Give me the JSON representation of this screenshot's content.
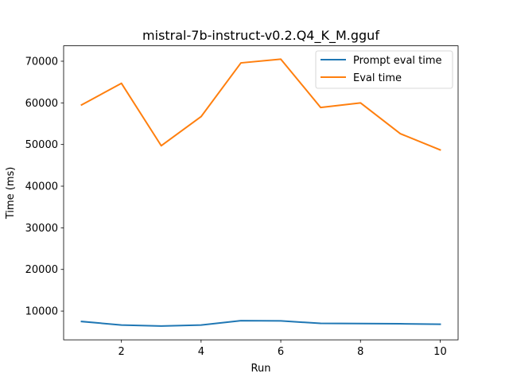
{
  "chart_data": {
    "type": "line",
    "title": "mistral-7b-instruct-v0.2.Q4_K_M.gguf",
    "xlabel": "Run",
    "ylabel": "Time (ms)",
    "x": [
      1,
      2,
      3,
      4,
      5,
      6,
      7,
      8,
      9,
      10
    ],
    "xticks": [
      2,
      4,
      6,
      8,
      10
    ],
    "yticks": [
      10000,
      20000,
      30000,
      40000,
      50000,
      60000,
      70000
    ],
    "xlim": [
      0.55,
      10.45
    ],
    "ylim": [
      3100,
      73700
    ],
    "grid": false,
    "legend_position": "top-right",
    "series": [
      {
        "name": "Prompt eval time",
        "color": "#1f77b4",
        "values": [
          7500,
          6650,
          6400,
          6650,
          7700,
          7650,
          7050,
          7000,
          6950,
          6850
        ]
      },
      {
        "name": "Eval time",
        "color": "#ff7f0e",
        "values": [
          59500,
          64700,
          49700,
          56700,
          69600,
          70500,
          58900,
          60000,
          52600,
          48700
        ]
      }
    ]
  }
}
